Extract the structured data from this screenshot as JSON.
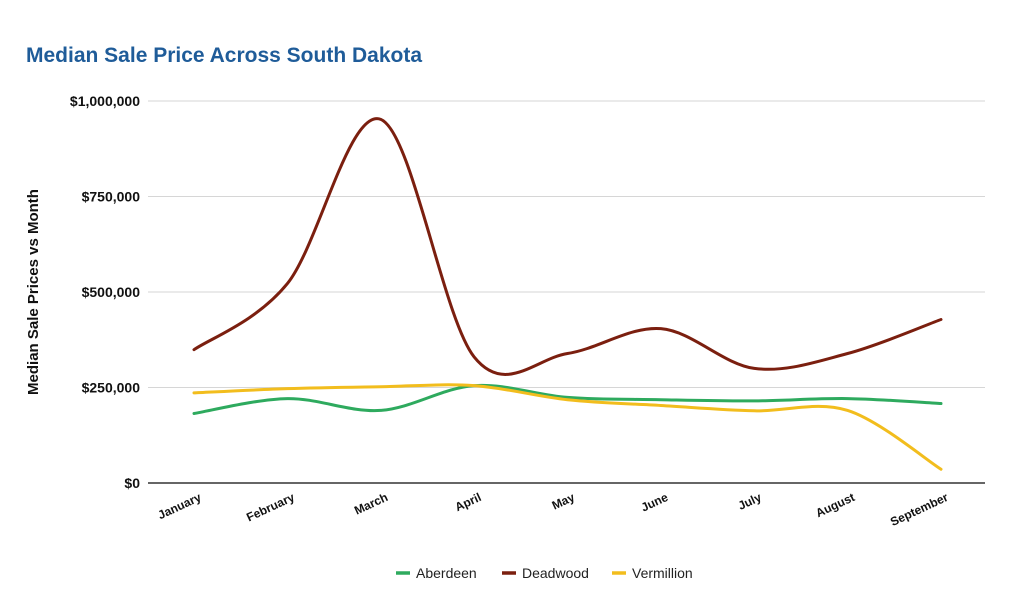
{
  "chart_data": {
    "type": "line",
    "title": "Median Sale Price Across South Dakota",
    "ylabel": "Median Sale Prices vs Month",
    "xlabel": "",
    "categories": [
      "January",
      "February",
      "March",
      "April",
      "May",
      "June",
      "July",
      "August",
      "September"
    ],
    "ylim": [
      0,
      1000000
    ],
    "yticks": [
      0,
      250000,
      500000,
      750000,
      1000000
    ],
    "ytick_labels": [
      "$0",
      "$250,000",
      "$500,000",
      "$750,000",
      "$1,000,000"
    ],
    "grid": true,
    "smooth": true,
    "legend": "bottom",
    "series": [
      {
        "name": "Aberdeen",
        "color": "#2eaa5e",
        "values": [
          182000,
          221000,
          190000,
          255000,
          224000,
          218000,
          215000,
          221000,
          208000
        ]
      },
      {
        "name": "Deadwood",
        "color": "#7b1f0f",
        "values": [
          349000,
          522000,
          952000,
          330000,
          339000,
          404000,
          300000,
          339000,
          428000
        ]
      },
      {
        "name": "Vermillion",
        "color": "#f2bd1d",
        "values": [
          236000,
          247000,
          252000,
          255000,
          218000,
          203000,
          189000,
          190000,
          36000
        ]
      }
    ]
  }
}
